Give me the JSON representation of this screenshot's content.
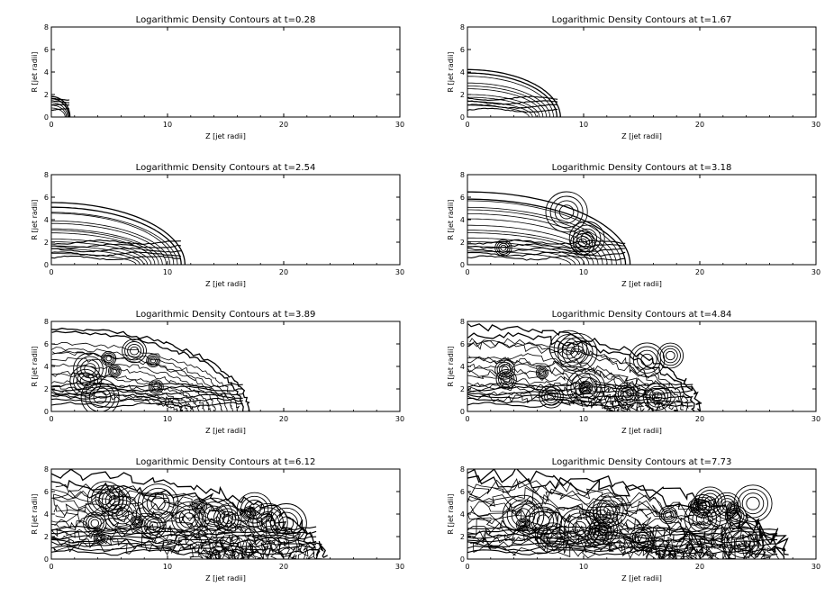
{
  "chart_data": [
    {
      "type": "contour",
      "title": "Logarithmic Density Contours at t=0.28",
      "xlabel": "Z [jet radii]",
      "ylabel": "R [jet radii]",
      "xlim": [
        0,
        30
      ],
      "ylim": [
        0,
        8
      ],
      "xticks": [
        0,
        10,
        20,
        30
      ],
      "yticks": [
        0,
        2,
        4,
        6,
        8
      ],
      "t": 0.28,
      "front_z": 1.6,
      "cocoon_r": 2.0,
      "contour_levels": 5
    },
    {
      "type": "contour",
      "title": "Logarithmic Density Contours at t=1.67",
      "xlabel": "Z [jet radii]",
      "ylabel": "R [jet radii]",
      "xlim": [
        0,
        30
      ],
      "ylim": [
        0,
        8
      ],
      "xticks": [
        0,
        10,
        20,
        30
      ],
      "yticks": [
        0,
        2,
        4,
        6,
        8
      ],
      "t": 1.67,
      "front_z": 8.0,
      "cocoon_r": 4.6,
      "contour_levels": 10
    },
    {
      "type": "contour",
      "title": "Logarithmic Density Contours at t=2.54",
      "xlabel": "Z [jet radii]",
      "ylabel": "R [jet radii]",
      "xlim": [
        0,
        30
      ],
      "ylim": [
        0,
        8
      ],
      "xticks": [
        0,
        10,
        20,
        30
      ],
      "yticks": [
        0,
        2,
        4,
        6,
        8
      ],
      "t": 2.54,
      "front_z": 11.5,
      "cocoon_r": 6.0,
      "contour_levels": 14
    },
    {
      "type": "contour",
      "title": "Logarithmic Density Contours at t=3.18",
      "xlabel": "Z [jet radii]",
      "ylabel": "R [jet radii]",
      "xlim": [
        0,
        30
      ],
      "ylim": [
        0,
        8
      ],
      "xticks": [
        0,
        10,
        20,
        30
      ],
      "yticks": [
        0,
        2,
        4,
        6,
        8
      ],
      "t": 3.18,
      "front_z": 14.0,
      "cocoon_r": 7.0,
      "contour_levels": 14
    },
    {
      "type": "contour",
      "title": "Logarithmic Density Contours at t=3.89",
      "xlabel": "Z [jet radii]",
      "ylabel": "R [jet radii]",
      "xlim": [
        0,
        30
      ],
      "ylim": [
        0,
        8
      ],
      "xticks": [
        0,
        10,
        20,
        30
      ],
      "yticks": [
        0,
        2,
        4,
        6,
        8
      ],
      "t": 3.89,
      "front_z": 17.0,
      "cocoon_r": 8.0,
      "contour_levels": 14
    },
    {
      "type": "contour",
      "title": "Logarithmic Density Contours at t=4.84",
      "xlabel": "Z [jet radii]",
      "ylabel": "R [jet radii]",
      "xlim": [
        0,
        30
      ],
      "ylim": [
        0,
        8
      ],
      "xticks": [
        0,
        10,
        20,
        30
      ],
      "yticks": [
        0,
        2,
        4,
        6,
        8
      ],
      "t": 4.84,
      "front_z": 20.0,
      "cocoon_r": 8.0,
      "contour_levels": 16
    },
    {
      "type": "contour",
      "title": "Logarithmic Density Contours at t=6.12",
      "xlabel": "Z [jet radii]",
      "ylabel": "R [jet radii]",
      "xlim": [
        0,
        30
      ],
      "ylim": [
        0,
        8
      ],
      "xticks": [
        0,
        10,
        20,
        30
      ],
      "yticks": [
        0,
        2,
        4,
        6,
        8
      ],
      "t": 6.12,
      "front_z": 23.5,
      "cocoon_r": 8.0,
      "contour_levels": 18
    },
    {
      "type": "contour",
      "title": "Logarithmic Density Contours at t=7.73",
      "xlabel": "Z [jet radii]",
      "ylabel": "R [jet radii]",
      "xlim": [
        0,
        30
      ],
      "ylim": [
        0,
        8
      ],
      "xticks": [
        0,
        10,
        20,
        30
      ],
      "yticks": [
        0,
        2,
        4,
        6,
        8
      ],
      "t": 7.73,
      "front_z": 27.5,
      "cocoon_r": 8.0,
      "contour_levels": 20
    }
  ]
}
